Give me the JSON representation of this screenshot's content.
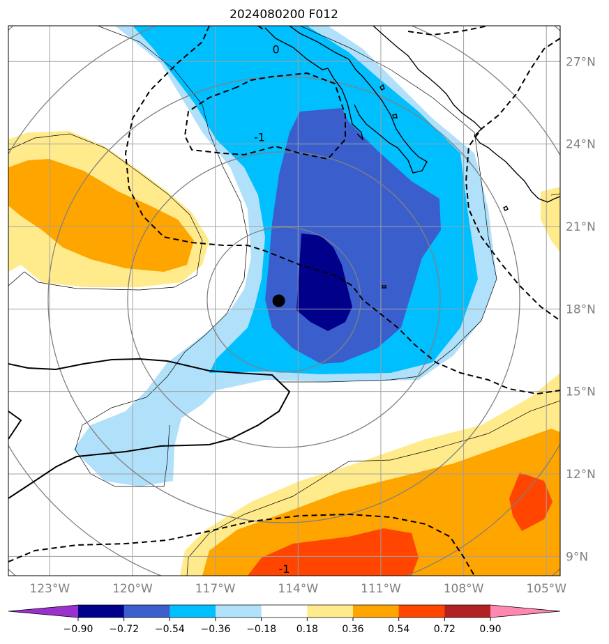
{
  "title": "2024080200 F012",
  "map": {
    "lon_range": [
      -124.5,
      -104.5
    ],
    "lat_range": [
      8.3,
      28.3
    ],
    "lon_ticks": [
      {
        "value": -123,
        "label": "123°W"
      },
      {
        "value": -120,
        "label": "120°W"
      },
      {
        "value": -117,
        "label": "117°W"
      },
      {
        "value": -114,
        "label": "114°W"
      },
      {
        "value": -111,
        "label": "111°W"
      },
      {
        "value": -108,
        "label": "108°W"
      },
      {
        "value": -105,
        "label": "105°W"
      }
    ],
    "lat_ticks": [
      {
        "value": 27,
        "label": "27°N"
      },
      {
        "value": 24,
        "label": "24°N"
      },
      {
        "value": 21,
        "label": "21°N"
      },
      {
        "value": 18,
        "label": "18°N"
      },
      {
        "value": 15,
        "label": "15°N"
      },
      {
        "value": 12,
        "label": "12°N"
      },
      {
        "value": 9,
        "label": "9°N"
      }
    ],
    "storm_center": {
      "lon": -114.7,
      "lat": 18.3
    },
    "contour_labels": [
      {
        "text": "0",
        "lon": -114.8,
        "lat": 27.3
      },
      {
        "text": "-1",
        "lon": -115.4,
        "lat": 24.1
      },
      {
        "text": "-1",
        "lon": -114.5,
        "lat": 8.4
      }
    ]
  },
  "colorbar": {
    "levels": [
      "−0.90",
      "−0.72",
      "−0.54",
      "−0.36",
      "−0.18",
      "0.18",
      "0.36",
      "0.54",
      "0.72",
      "0.90"
    ],
    "colors": [
      "#9932cc",
      "#00008b",
      "#3a5fcd",
      "#00bfff",
      "#b0e0fa",
      "#ffffff",
      "#ffeb8c",
      "#ffa500",
      "#ff4500",
      "#b22222",
      "#ff88b0"
    ]
  },
  "colors": {
    "grid": "#a0a0a0",
    "range_ring": "#808080",
    "coast": "#000000"
  }
}
